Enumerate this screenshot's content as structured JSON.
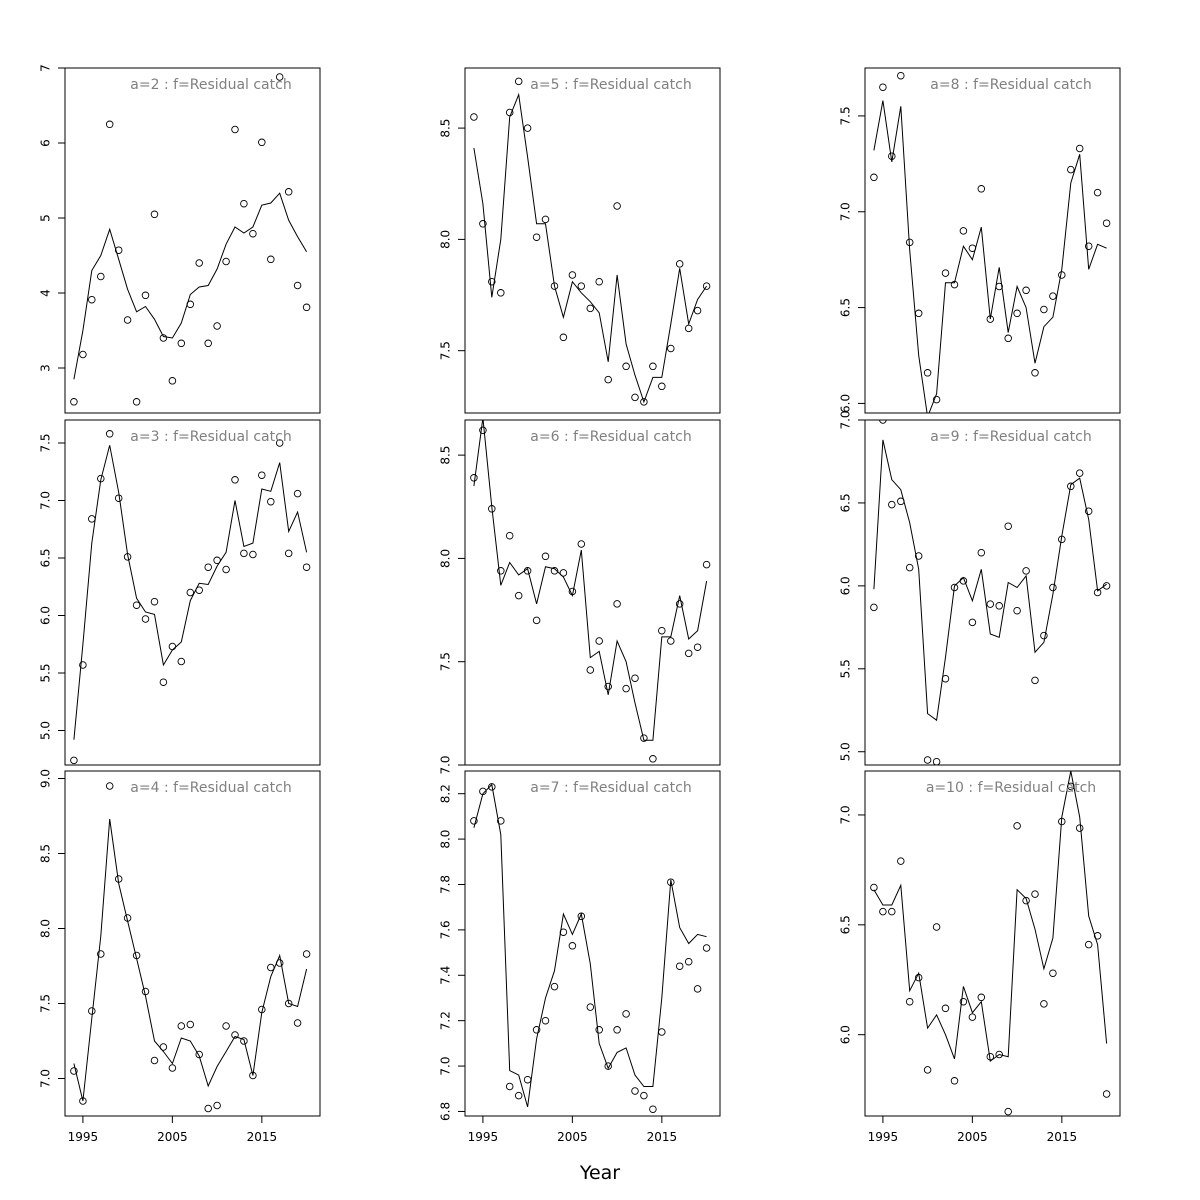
{
  "xlabel": "Year",
  "x_ticks": [
    1995,
    2005,
    2015
  ],
  "chart_data": [
    {
      "type": "scatter",
      "title": "a=2  :  f=Residual catch",
      "ylim": [
        2.4,
        7.0
      ],
      "y_ticks": [
        3,
        4,
        5,
        6,
        7
      ],
      "x": [
        1994,
        1995,
        1996,
        1997,
        1998,
        1999,
        2000,
        2001,
        2002,
        2003,
        2004,
        2005,
        2006,
        2007,
        2008,
        2009,
        2010,
        2011,
        2012,
        2013,
        2014,
        2015,
        2016,
        2017,
        2018,
        2019,
        2020
      ],
      "series": [
        {
          "kind": "points",
          "values": [
            2.55,
            3.18,
            3.91,
            4.22,
            6.25,
            4.57,
            3.64,
            2.55,
            3.97,
            5.05,
            3.4,
            2.83,
            3.33,
            3.85,
            4.4,
            3.33,
            3.56,
            4.42,
            6.18,
            5.19,
            4.79,
            6.01,
            4.45,
            6.88,
            5.35,
            4.1,
            3.81
          ]
        },
        {
          "kind": "line",
          "values": [
            2.85,
            3.5,
            4.3,
            4.5,
            4.85,
            4.45,
            4.05,
            3.75,
            3.82,
            3.65,
            3.42,
            3.4,
            3.6,
            3.98,
            4.08,
            4.1,
            4.32,
            4.65,
            4.88,
            4.8,
            4.88,
            5.17,
            5.2,
            5.33,
            4.97,
            4.75,
            4.55
          ]
        }
      ]
    },
    {
      "type": "scatter",
      "title": "a=5  :  f=Residual catch",
      "ylim": [
        7.22,
        8.77
      ],
      "y_ticks": [
        7.5,
        8.0,
        8.5
      ],
      "x": [
        1994,
        1995,
        1996,
        1997,
        1998,
        1999,
        2000,
        2001,
        2002,
        2003,
        2004,
        2005,
        2006,
        2007,
        2008,
        2009,
        2010,
        2011,
        2012,
        2013,
        2014,
        2015,
        2016,
        2017,
        2018,
        2019,
        2020
      ],
      "series": [
        {
          "kind": "points",
          "values": [
            8.55,
            8.07,
            7.81,
            7.76,
            8.57,
            8.71,
            8.5,
            8.01,
            8.09,
            7.79,
            7.56,
            7.84,
            7.79,
            7.69,
            7.81,
            7.37,
            8.15,
            7.43,
            7.29,
            7.27,
            7.43,
            7.34,
            7.51,
            7.89,
            7.6,
            7.68,
            7.79
          ]
        },
        {
          "kind": "line",
          "values": [
            8.41,
            8.16,
            7.74,
            8.0,
            8.55,
            8.65,
            8.37,
            8.07,
            8.07,
            7.79,
            7.65,
            7.81,
            7.76,
            7.72,
            7.67,
            7.45,
            7.84,
            7.53,
            7.39,
            7.27,
            7.38,
            7.38,
            7.62,
            7.87,
            7.62,
            7.73,
            7.79
          ]
        }
      ]
    },
    {
      "type": "scatter",
      "title": "a=8  :  f=Residual catch",
      "ylim": [
        5.95,
        7.75
      ],
      "y_ticks": [
        6.0,
        6.5,
        7.0,
        7.5
      ],
      "x": [
        1994,
        1995,
        1996,
        1997,
        1998,
        1999,
        2000,
        2001,
        2002,
        2003,
        2004,
        2005,
        2006,
        2007,
        2008,
        2009,
        2010,
        2011,
        2012,
        2013,
        2014,
        2015,
        2016,
        2017,
        2018,
        2019,
        2020
      ],
      "series": [
        {
          "kind": "points",
          "values": [
            7.18,
            7.65,
            7.29,
            7.71,
            6.84,
            6.47,
            6.16,
            6.02,
            6.68,
            6.62,
            6.9,
            6.81,
            7.12,
            6.44,
            6.61,
            6.34,
            6.47,
            6.59,
            6.16,
            6.49,
            6.56,
            6.67,
            7.22,
            7.33,
            6.82,
            7.1,
            6.94
          ]
        },
        {
          "kind": "line",
          "values": [
            7.32,
            7.58,
            7.26,
            7.55,
            6.8,
            6.25,
            5.93,
            6.05,
            6.63,
            6.63,
            6.82,
            6.75,
            6.92,
            6.44,
            6.71,
            6.37,
            6.61,
            6.5,
            6.21,
            6.4,
            6.45,
            6.7,
            7.15,
            7.3,
            6.7,
            6.83,
            6.81
          ]
        }
      ]
    },
    {
      "type": "scatter",
      "title": "a=3  :  f=Residual catch",
      "ylim": [
        4.7,
        7.7
      ],
      "y_ticks": [
        5.0,
        5.5,
        6.0,
        6.5,
        7.0,
        7.5
      ],
      "x": [
        1994,
        1995,
        1996,
        1997,
        1998,
        1999,
        2000,
        2001,
        2002,
        2003,
        2004,
        2005,
        2006,
        2007,
        2008,
        2009,
        2010,
        2011,
        2012,
        2013,
        2014,
        2015,
        2016,
        2017,
        2018,
        2019,
        2020
      ],
      "series": [
        {
          "kind": "points",
          "values": [
            4.74,
            5.57,
            6.84,
            7.19,
            7.58,
            7.02,
            6.51,
            6.09,
            5.97,
            6.12,
            5.42,
            5.73,
            5.6,
            6.2,
            6.22,
            6.42,
            6.48,
            6.4,
            7.18,
            6.54,
            6.53,
            7.22,
            6.99,
            7.5,
            6.54,
            7.06,
            6.42
          ]
        },
        {
          "kind": "line",
          "values": [
            4.92,
            5.75,
            6.63,
            7.18,
            7.48,
            7.07,
            6.53,
            6.15,
            6.03,
            6.01,
            5.57,
            5.7,
            5.77,
            6.13,
            6.28,
            6.27,
            6.43,
            6.55,
            7.0,
            6.6,
            6.63,
            7.1,
            7.08,
            7.33,
            6.73,
            6.9,
            6.55
          ]
        }
      ]
    },
    {
      "type": "scatter",
      "title": "a=6  :  f=Residual catch",
      "ylim": [
        7.0,
        8.67
      ],
      "y_ticks": [
        7.0,
        7.5,
        8.0,
        8.5
      ],
      "x": [
        1994,
        1995,
        1996,
        1997,
        1998,
        1999,
        2000,
        2001,
        2002,
        2003,
        2004,
        2005,
        2006,
        2007,
        2008,
        2009,
        2010,
        2011,
        2012,
        2013,
        2014,
        2015,
        2016,
        2017,
        2018,
        2019,
        2020
      ],
      "series": [
        {
          "kind": "points",
          "values": [
            8.39,
            8.62,
            8.24,
            7.94,
            8.11,
            7.82,
            7.94,
            7.7,
            8.01,
            7.94,
            7.93,
            7.84,
            8.07,
            7.46,
            7.6,
            7.38,
            7.78,
            7.37,
            7.42,
            7.13,
            7.03,
            7.65,
            7.6,
            7.78,
            7.54,
            7.57,
            7.97
          ]
        },
        {
          "kind": "line",
          "values": [
            8.35,
            8.68,
            8.25,
            7.87,
            7.98,
            7.92,
            7.95,
            7.78,
            7.96,
            7.95,
            7.91,
            7.82,
            8.04,
            7.52,
            7.55,
            7.34,
            7.6,
            7.5,
            7.3,
            7.12,
            7.12,
            7.62,
            7.62,
            7.82,
            7.61,
            7.65,
            7.89
          ]
        }
      ]
    },
    {
      "type": "scatter",
      "title": "a=9  :  f=Residual catch",
      "ylim": [
        4.92,
        7.0
      ],
      "y_ticks": [
        5.0,
        5.5,
        6.0,
        6.5,
        7.0
      ],
      "x": [
        1994,
        1995,
        1996,
        1997,
        1998,
        1999,
        2000,
        2001,
        2002,
        2003,
        2004,
        2005,
        2006,
        2007,
        2008,
        2009,
        2010,
        2011,
        2012,
        2013,
        2014,
        2015,
        2016,
        2017,
        2018,
        2019,
        2020
      ],
      "series": [
        {
          "kind": "points",
          "values": [
            5.87,
            7.0,
            6.49,
            6.51,
            6.11,
            6.18,
            4.95,
            4.94,
            5.44,
            5.99,
            6.03,
            5.78,
            6.2,
            5.89,
            5.88,
            6.36,
            5.85,
            6.09,
            5.43,
            5.7,
            5.99,
            6.28,
            6.6,
            6.68,
            6.45,
            5.96,
            6.0
          ]
        },
        {
          "kind": "line",
          "values": [
            5.98,
            6.88,
            6.64,
            6.58,
            6.38,
            6.1,
            5.23,
            5.19,
            5.57,
            6.0,
            6.05,
            5.91,
            6.1,
            5.71,
            5.69,
            6.02,
            5.99,
            6.06,
            5.6,
            5.66,
            5.95,
            6.3,
            6.61,
            6.65,
            6.4,
            5.97,
            6.01
          ]
        }
      ]
    },
    {
      "type": "scatter",
      "title": "a=4  :  f=Residual catch",
      "ylim": [
        6.75,
        9.05
      ],
      "y_ticks": [
        7.0,
        7.5,
        8.0,
        8.5,
        9.0
      ],
      "x": [
        1994,
        1995,
        1996,
        1997,
        1998,
        1999,
        2000,
        2001,
        2002,
        2003,
        2004,
        2005,
        2006,
        2007,
        2008,
        2009,
        2010,
        2011,
        2012,
        2013,
        2014,
        2015,
        2016,
        2017,
        2018,
        2019,
        2020
      ],
      "series": [
        {
          "kind": "points",
          "values": [
            7.05,
            6.85,
            7.45,
            7.83,
            8.95,
            8.33,
            8.07,
            7.82,
            7.58,
            7.12,
            7.21,
            7.07,
            7.35,
            7.36,
            7.16,
            6.8,
            6.82,
            7.35,
            7.29,
            7.25,
            7.02,
            7.46,
            7.74,
            7.77,
            7.5,
            7.37,
            7.83
          ]
        },
        {
          "kind": "line",
          "values": [
            7.1,
            6.85,
            7.4,
            7.95,
            8.73,
            8.3,
            8.05,
            7.8,
            7.55,
            7.25,
            7.18,
            7.1,
            7.27,
            7.25,
            7.15,
            6.95,
            7.08,
            7.18,
            7.28,
            7.26,
            7.02,
            7.44,
            7.68,
            7.82,
            7.5,
            7.48,
            7.73
          ]
        }
      ]
    },
    {
      "type": "scatter",
      "title": "a=7  :  f=Residual catch",
      "ylim": [
        6.78,
        8.3
      ],
      "y_ticks": [
        6.8,
        7.0,
        7.2,
        7.4,
        7.6,
        7.8,
        8.0,
        8.2
      ],
      "x": [
        1994,
        1995,
        1996,
        1997,
        1998,
        1999,
        2000,
        2001,
        2002,
        2003,
        2004,
        2005,
        2006,
        2007,
        2008,
        2009,
        2010,
        2011,
        2012,
        2013,
        2014,
        2015,
        2016,
        2017,
        2018,
        2019,
        2020
      ],
      "series": [
        {
          "kind": "points",
          "values": [
            8.08,
            8.21,
            8.23,
            8.08,
            6.91,
            6.87,
            6.94,
            7.16,
            7.2,
            7.35,
            7.59,
            7.53,
            7.66,
            7.26,
            7.16,
            7.0,
            7.16,
            7.23,
            6.89,
            6.87,
            6.81,
            7.15,
            7.81,
            7.44,
            7.46,
            7.34,
            7.52
          ]
        },
        {
          "kind": "line",
          "values": [
            8.05,
            8.2,
            8.24,
            8.02,
            6.98,
            6.96,
            6.82,
            7.12,
            7.3,
            7.42,
            7.67,
            7.58,
            7.67,
            7.45,
            7.1,
            6.99,
            7.06,
            7.08,
            6.96,
            6.91,
            6.91,
            7.3,
            7.82,
            7.61,
            7.54,
            7.58,
            7.57
          ]
        }
      ]
    },
    {
      "type": "scatter",
      "title": "a=10  :  f=Residual catch",
      "ylim": [
        5.63,
        7.2
      ],
      "y_ticks": [
        6.0,
        6.5,
        7.0
      ],
      "x": [
        1994,
        1995,
        1996,
        1997,
        1998,
        1999,
        2000,
        2001,
        2002,
        2003,
        2004,
        2005,
        2006,
        2007,
        2008,
        2009,
        2010,
        2011,
        2012,
        2013,
        2014,
        2015,
        2016,
        2017,
        2018,
        2019,
        2020
      ],
      "series": [
        {
          "kind": "points",
          "values": [
            6.67,
            6.56,
            6.56,
            6.79,
            6.15,
            6.26,
            5.84,
            6.49,
            6.12,
            5.79,
            6.15,
            6.08,
            6.17,
            5.9,
            5.91,
            5.65,
            6.95,
            6.61,
            6.64,
            6.14,
            6.28,
            6.97,
            7.13,
            6.94,
            6.41,
            6.45,
            5.73
          ]
        },
        {
          "kind": "line",
          "values": [
            6.66,
            6.59,
            6.59,
            6.68,
            6.2,
            6.28,
            6.03,
            6.09,
            6.0,
            5.89,
            6.22,
            6.1,
            6.15,
            5.88,
            5.91,
            5.9,
            6.66,
            6.62,
            6.48,
            6.3,
            6.44,
            6.99,
            7.2,
            6.99,
            6.54,
            6.41,
            5.96
          ]
        }
      ]
    }
  ]
}
